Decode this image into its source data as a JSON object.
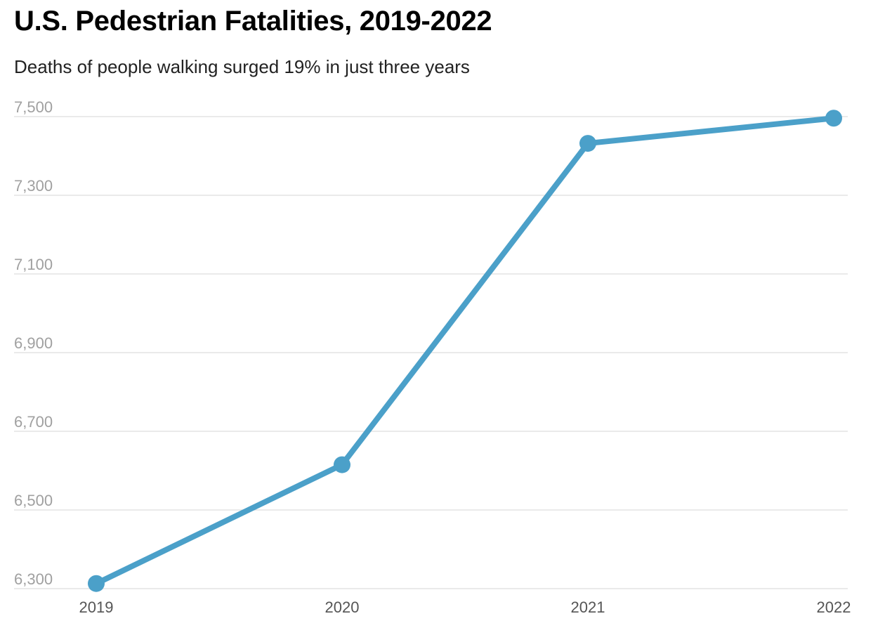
{
  "chart_data": {
    "type": "line",
    "title": "U.S. Pedestrian Fatalities, 2019-2022",
    "subtitle": "Deaths of people walking surged 19% in just three years",
    "xlabel": "",
    "ylabel": "",
    "x": [
      "2019",
      "2020",
      "2021",
      "2022"
    ],
    "series": [
      {
        "values": [
          6313,
          6615,
          7432,
          7496
        ]
      }
    ],
    "yticks": [
      6300,
      6500,
      6700,
      6900,
      7100,
      7300,
      7500
    ],
    "ytick_labels": [
      "6,300",
      "6,500",
      "6,700",
      "6,900",
      "7,100",
      "7,300",
      "7,500"
    ],
    "ylim": [
      6300,
      7500
    ],
    "grid": true,
    "legend": "none",
    "colors": {
      "line": "#4ba0c9",
      "grid": "#e3e3e3",
      "ytick": "#a0a0a0",
      "xtick": "#555555"
    }
  }
}
